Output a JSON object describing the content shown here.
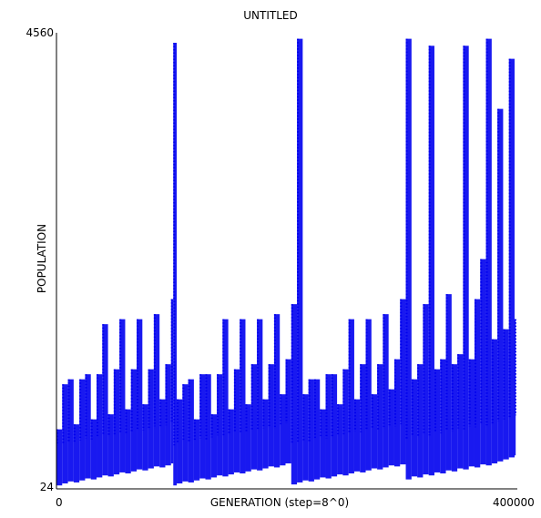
{
  "chart_data": {
    "type": "scatter",
    "title": "UNTITLED",
    "xlabel": "GENERATION (step=8^0)",
    "ylabel": "POPULATION",
    "xlim": [
      0,
      400000
    ],
    "ylim": [
      24,
      4560
    ],
    "x_tick_labels": [
      "0",
      "400000"
    ],
    "y_tick_labels": [
      "24",
      "4560"
    ],
    "series_color": "#0000ee",
    "grid": false,
    "legend": "none",
    "series": [
      {
        "x": [
          0,
          5000,
          10000,
          15000,
          20000,
          25000,
          30000,
          35000,
          40000,
          45000,
          50000,
          55000,
          60000,
          65000,
          70000,
          75000,
          80000,
          85000,
          90000,
          95000,
          100000,
          102000,
          105000,
          110000,
          115000,
          120000,
          125000,
          130000,
          135000,
          140000,
          145000,
          150000,
          155000,
          160000,
          165000,
          170000,
          175000,
          180000,
          185000,
          190000,
          195000,
          200000,
          205000,
          210000,
          215000,
          220000,
          225000,
          230000,
          235000,
          240000,
          245000,
          250000,
          255000,
          260000,
          265000,
          270000,
          275000,
          280000,
          285000,
          290000,
          295000,
          300000,
          305000,
          310000,
          315000,
          320000,
          325000,
          330000,
          335000,
          340000,
          345000,
          350000,
          355000,
          360000,
          365000,
          370000,
          375000,
          380000,
          385000,
          390000,
          395000,
          400000
        ],
        "y_min": [
          40,
          60,
          80,
          70,
          90,
          110,
          100,
          120,
          140,
          130,
          150,
          170,
          160,
          180,
          200,
          190,
          210,
          230,
          220,
          240,
          260,
          40,
          60,
          80,
          70,
          90,
          110,
          100,
          120,
          140,
          130,
          150,
          170,
          160,
          180,
          200,
          190,
          210,
          230,
          220,
          240,
          260,
          50,
          70,
          90,
          80,
          100,
          120,
          110,
          130,
          150,
          140,
          160,
          180,
          170,
          190,
          210,
          200,
          220,
          240,
          230,
          250,
          100,
          130,
          120,
          150,
          140,
          170,
          160,
          190,
          180,
          210,
          200,
          230,
          220,
          250,
          240,
          260,
          280,
          300,
          320,
          340
        ],
        "y_max": [
          600,
          1050,
          1100,
          650,
          1100,
          1150,
          700,
          1150,
          1650,
          750,
          1200,
          1700,
          800,
          1200,
          1700,
          850,
          1200,
          1750,
          900,
          1250,
          1900,
          4460,
          900,
          1050,
          1100,
          700,
          1150,
          1150,
          750,
          1150,
          1700,
          800,
          1200,
          1700,
          850,
          1250,
          1700,
          900,
          1250,
          1750,
          950,
          1300,
          1850,
          4500,
          950,
          1100,
          1100,
          800,
          1150,
          1150,
          850,
          1200,
          1700,
          900,
          1250,
          1700,
          950,
          1250,
          1750,
          1000,
          1300,
          1900,
          4500,
          1100,
          1250,
          1850,
          4430,
          1200,
          1300,
          1950,
          1250,
          1350,
          4430,
          1300,
          1900,
          2300,
          4500,
          1500,
          3800,
          1600,
          4300,
          1700
        ]
      }
    ]
  }
}
